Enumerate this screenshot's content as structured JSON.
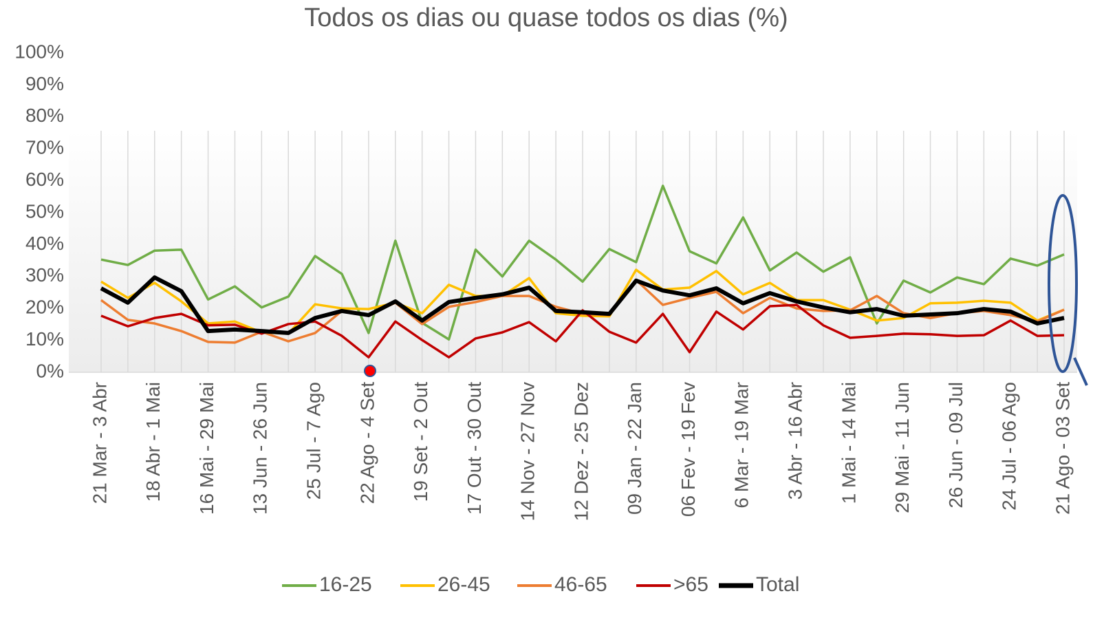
{
  "chart_data": {
    "type": "line",
    "title": "Todos os dias ou quase todos os dias (%)",
    "categories": [
      "21 Mar - 3 Abr",
      null,
      "18 Abr - 1 Mai",
      null,
      "16 Mai - 29 Mai",
      null,
      "13 Jun - 26 Jun",
      null,
      "25 Jul - 7 Ago",
      null,
      "22 Ago - 4 Set",
      null,
      "19 Set - 2 Out",
      null,
      "17 Out - 30 Out",
      null,
      "14 Nov - 27 Nov",
      null,
      "12 Dez - 25 Dez",
      null,
      "09 Jan - 22 Jan",
      null,
      "06 Fev - 19 Fev",
      null,
      "6 Mar - 19 Mar",
      null,
      "3 Abr - 16 Abr",
      null,
      "1 Mai - 14 Mai",
      null,
      "29 Mai - 11 Jun",
      null,
      "26 Jun - 09 Jul",
      null,
      "24 Jul - 06 Ago",
      null,
      "21 Ago - 03 Set"
    ],
    "series": [
      {
        "name": "16-25",
        "color": "#70ad47",
        "values": [
          35.3,
          33.6,
          38.1,
          38.4,
          22.8,
          26.9,
          20.3,
          23.7,
          36.4,
          30.8,
          12.3,
          41.2,
          15.5,
          10.3,
          38.4,
          30.0,
          41.2,
          35.3,
          28.4,
          38.6,
          34.5,
          58.4,
          37.9,
          34.1,
          48.5,
          31.9,
          37.5,
          31.5,
          36.0,
          15.3,
          28.7,
          25.0,
          29.7,
          27.6,
          35.6,
          33.4,
          36.9
        ]
      },
      {
        "name": "26-45",
        "color": "#ffc000",
        "values": [
          28.4,
          23.3,
          28.0,
          22.2,
          15.3,
          15.9,
          12.5,
          12.1,
          21.3,
          20.0,
          19.8,
          21.8,
          18.5,
          27.4,
          23.9,
          23.9,
          29.5,
          18.5,
          17.7,
          17.5,
          32.1,
          25.9,
          26.5,
          31.7,
          24.4,
          28.0,
          22.6,
          22.6,
          19.6,
          16.2,
          17.0,
          21.6,
          21.8,
          22.4,
          21.8,
          16.2,
          19.6
        ]
      },
      {
        "name": "46-65",
        "color": "#ed7d31",
        "values": [
          22.6,
          16.4,
          15.3,
          12.9,
          9.5,
          9.3,
          12.7,
          9.7,
          12.3,
          19.2,
          17.9,
          21.8,
          15.1,
          20.5,
          22.0,
          23.9,
          23.9,
          20.5,
          18.3,
          17.9,
          28.9,
          21.1,
          23.3,
          25.2,
          18.5,
          23.3,
          20.0,
          19.2,
          19.4,
          23.9,
          18.5,
          17.0,
          18.5,
          19.2,
          17.9,
          15.9,
          19.6
        ]
      },
      {
        "name": ">65",
        "color": "#c00000",
        "values": [
          17.7,
          14.4,
          17.0,
          18.3,
          14.7,
          14.9,
          12.1,
          15.1,
          15.9,
          11.4,
          4.7,
          15.9,
          10.1,
          4.7,
          10.6,
          12.5,
          15.7,
          9.7,
          19.4,
          12.7,
          9.3,
          18.3,
          6.3,
          19.0,
          13.4,
          20.7,
          21.1,
          14.7,
          10.8,
          11.4,
          12.1,
          11.9,
          11.4,
          11.6,
          16.2,
          11.4,
          11.6
        ]
      },
      {
        "name": "Total",
        "color": "#000000",
        "values": [
          26.3,
          21.8,
          29.7,
          25.4,
          12.9,
          13.4,
          12.9,
          12.3,
          17.0,
          19.2,
          17.9,
          22.2,
          16.2,
          22.0,
          23.3,
          24.4,
          26.5,
          19.2,
          18.8,
          18.3,
          28.7,
          25.6,
          24.1,
          26.3,
          21.6,
          24.8,
          22.2,
          20.3,
          18.8,
          19.8,
          17.7,
          18.1,
          18.5,
          19.8,
          19.0,
          15.3,
          17.0
        ]
      }
    ],
    "ylim": [
      0,
      100
    ],
    "yticks": [
      {
        "value": 0,
        "label": "0%"
      },
      {
        "value": 10,
        "label": "10%"
      },
      {
        "value": 20,
        "label": "20%"
      },
      {
        "value": 30,
        "label": "30%"
      },
      {
        "value": 40,
        "label": "40%"
      },
      {
        "value": 50,
        "label": "50%"
      },
      {
        "value": 60,
        "label": "60%"
      },
      {
        "value": 70,
        "label": "70%"
      },
      {
        "value": 80,
        "label": "80%"
      },
      {
        "value": 90,
        "label": "90%"
      },
      {
        "value": 100,
        "label": "100%"
      }
    ],
    "legend": "bottom"
  }
}
